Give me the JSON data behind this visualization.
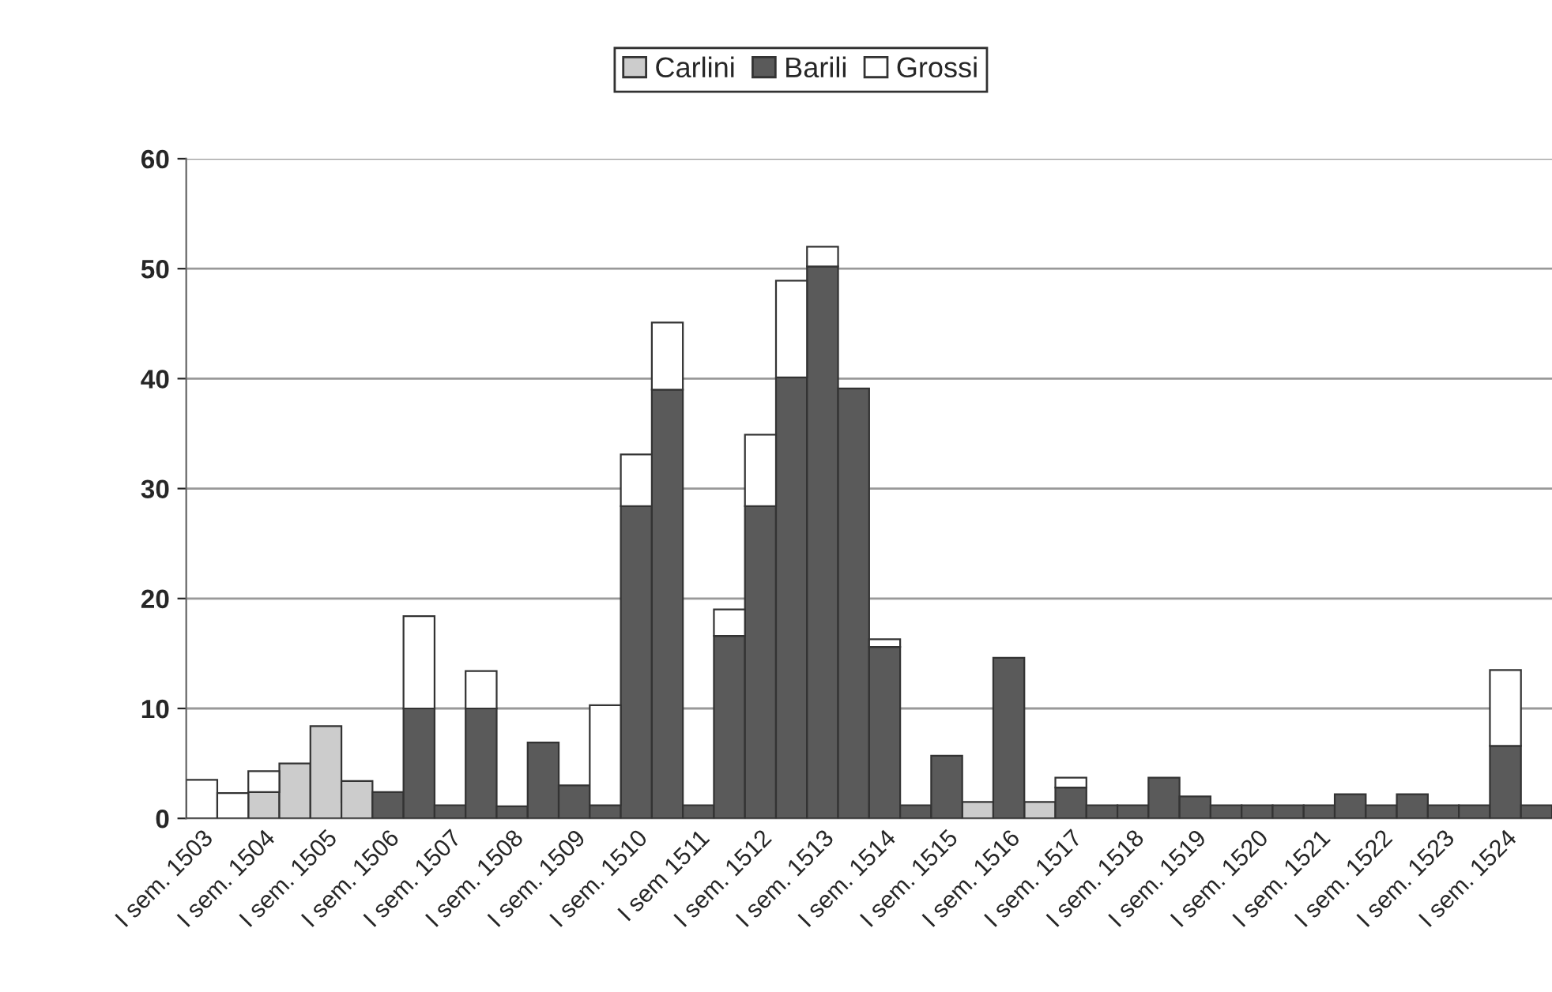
{
  "chart_data": {
    "type": "bar",
    "stacked": true,
    "categories": [
      "I sem. 1503",
      null,
      "I sem. 1504",
      null,
      "I sem. 1505",
      null,
      "I sem. 1506",
      null,
      "I sem. 1507",
      null,
      "I sem. 1508",
      null,
      "I sem. 1509",
      null,
      "I sem. 1510",
      null,
      "I sem 1511",
      null,
      "I sem. 1512",
      null,
      "I sem. 1513",
      null,
      "I sem. 1514",
      null,
      "I sem. 1515",
      null,
      "I sem. 1516",
      null,
      "I sem. 1517",
      null,
      "I sem. 1518",
      null,
      "I sem. 1519",
      null,
      "I sem. 1520",
      null,
      "I sem. 1521",
      null,
      "I sem. 1522",
      null,
      "I sem. 1523",
      null,
      "I sem. 1524",
      null
    ],
    "series": [
      {
        "name": "Carlini",
        "color": "#cccccc",
        "values": [
          null,
          null,
          2.4,
          5.0,
          8.4,
          3.4,
          null,
          null,
          null,
          null,
          null,
          null,
          null,
          null,
          null,
          null,
          null,
          null,
          null,
          null,
          null,
          null,
          null,
          null,
          null,
          1.5,
          null,
          1.5,
          null,
          null,
          null,
          null,
          null,
          null,
          null,
          null,
          null,
          null,
          null,
          null,
          null,
          null,
          null,
          null
        ]
      },
      {
        "name": "Barili",
        "color": "#5a5a5a",
        "values": [
          null,
          null,
          null,
          null,
          null,
          null,
          2.4,
          10,
          1.2,
          10,
          1.1,
          6.9,
          3.0,
          1.2,
          28.4,
          39,
          1.2,
          16.6,
          28.4,
          40.1,
          50.2,
          39.1,
          15.6,
          1.2,
          5.7,
          null,
          14.6,
          null,
          2.8,
          1.2,
          1.2,
          3.7,
          2.0,
          1.2,
          1.2,
          1.2,
          1.2,
          2.2,
          1.2,
          2.2,
          1.2,
          1.2,
          6.6,
          1.2
        ]
      },
      {
        "name": "Grossi",
        "color": "#ffffff",
        "values": [
          3.5,
          2.3,
          1.9,
          null,
          null,
          null,
          null,
          8.4,
          null,
          3.4,
          null,
          null,
          null,
          9.1,
          4.7,
          6.1,
          null,
          2.4,
          6.5,
          8.8,
          1.8,
          null,
          0.7,
          null,
          null,
          null,
          null,
          null,
          0.9,
          null,
          null,
          null,
          null,
          null,
          null,
          null,
          null,
          null,
          null,
          null,
          null,
          null,
          6.9,
          null
        ]
      }
    ],
    "ylim": [
      0,
      60
    ],
    "yticks": [
      0,
      10,
      20,
      30,
      40,
      50,
      60
    ],
    "grid": "y",
    "legend": "top"
  }
}
